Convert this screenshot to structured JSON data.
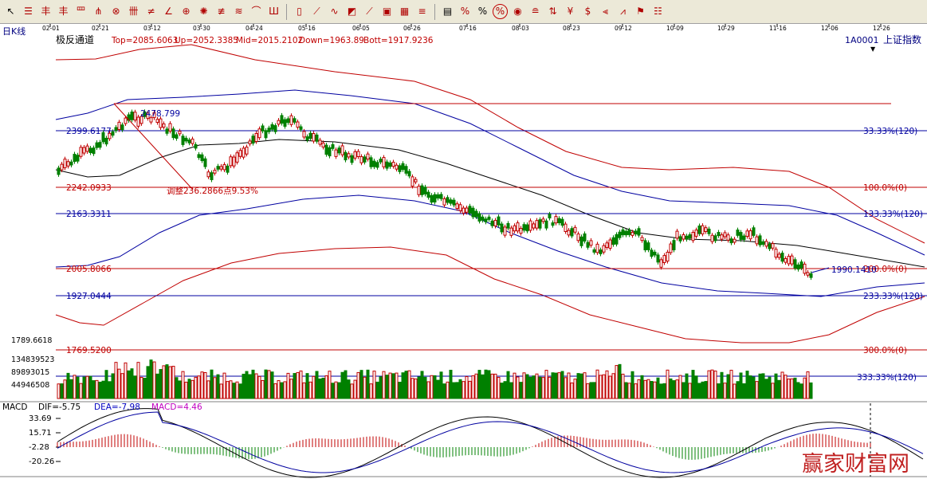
{
  "toolbar": {
    "groups": [
      [
        "cursor-tool",
        "line-tool",
        "channel-tool",
        "parallel-tool",
        "fork-tool",
        "gann-tool",
        "cycle-tool",
        "grid-tool",
        "ratio-tool",
        "angle-tool",
        "fan-tool",
        "target-tool",
        "fib-retrace-tool",
        "speed-tool",
        "arc-tool",
        "time-zone-tool"
      ],
      [
        "box-tool",
        "resistance-tool",
        "wave-tool",
        "wedge-tool",
        "trend-tool",
        "square-tool",
        "rect-tool",
        "step-tool"
      ],
      [
        "list-tool",
        "percent-tool",
        "percent-sign-tool",
        "percent-circle-tool",
        "coin-tool",
        "mirror-tool",
        "arrow-tool",
        "yen-tool",
        "dollar-tool",
        "fib-fan-tool",
        "fib-grid-tool",
        "flag-tool",
        "hexagram-tool"
      ]
    ],
    "glyphs": {
      "cursor-tool": "↖",
      "line-tool": "☰",
      "channel-tool": "丰",
      "parallel-tool": "丰",
      "fork-tool": "罒",
      "gann-tool": "⋔",
      "cycle-tool": "⊗",
      "grid-tool": "卌",
      "ratio-tool": "≠",
      "angle-tool": "∠",
      "fan-tool": "⊕",
      "target-tool": "✺",
      "fib-retrace-tool": "≢",
      "speed-tool": "≋",
      "arc-tool": "⌒",
      "time-zone-tool": "Ш",
      "box-tool": "▯",
      "resistance-tool": "⟋",
      "wave-tool": "∿",
      "wedge-tool": "◩",
      "trend-tool": "⟋",
      "square-tool": "▣",
      "rect-tool": "▦",
      "step-tool": "≡",
      "list-tool": "▤",
      "percent-tool": "%",
      "percent-sign-tool": "%",
      "percent-circle-tool": "%",
      "coin-tool": "◉",
      "mirror-tool": "≘",
      "arrow-tool": "⇅",
      "yen-tool": "¥",
      "dollar-tool": "$",
      "fib-fan-tool": "⫷",
      "fib-grid-tool": "⩘",
      "flag-tool": "⚑",
      "hexagram-tool": "☷"
    }
  },
  "chart_header": {
    "period": "日K线",
    "indicator": "极反通道",
    "top": "Top=2085.6063",
    "up": "Up=2052.3385",
    "mid": "Mid=2015.2102",
    "down": "Down=1963.89",
    "bott": "Bott=1917.9236",
    "code": "1A0001",
    "name": "上证指数"
  },
  "dates": [
    "02-01",
    "02-21",
    "03-12",
    "03-30",
    "04-24",
    "05-16",
    "06-05",
    "06-26",
    "07-16",
    "08-03",
    "08-23",
    "09-12",
    "10-09",
    "10-29",
    "11-16",
    "12-06",
    "12-26"
  ],
  "price_levels": [
    {
      "value": "2399.6177",
      "label": "33.33%(120)",
      "color": "#0000a0"
    },
    {
      "value": "2242.0933",
      "label": "100.0%(0)",
      "color": "#c00000"
    },
    {
      "value": "2163.3311",
      "label": "133.33%(120)",
      "color": "#0000a0"
    },
    {
      "value": "2005.8066",
      "label": "200.0%(0)",
      "color": "#c00000"
    },
    {
      "value": "1927.0444",
      "label": "233.33%(120)",
      "color": "#0000a0"
    },
    {
      "value": "1769.5200",
      "label": "300.0%(0)",
      "color": "#c00000"
    },
    {
      "value": "1789.6618",
      "label": "",
      "color": "#000000"
    },
    {
      "value": "",
      "label": "333.33%(120)",
      "color": "#0000a0"
    }
  ],
  "annotations": {
    "high": "2478.799",
    "adjust": "调整236.2866点9.53%",
    "last": "1990.1410"
  },
  "volume_axis": [
    "134839523",
    "89893015",
    "44946508"
  ],
  "macd": {
    "name": "MACD",
    "dif": "DIF=-5.75",
    "dea": "DEA=-7.98",
    "macd": "MACD=4.46",
    "axis": [
      "33.69",
      "15.71",
      "-2.28",
      "-20.26"
    ]
  },
  "watermark": "赢家财富网",
  "colors": {
    "up": "#c00000",
    "down": "#008000",
    "channel_outer": "#c00000",
    "channel_inner": "#0000a0",
    "mid": "#000000"
  }
}
